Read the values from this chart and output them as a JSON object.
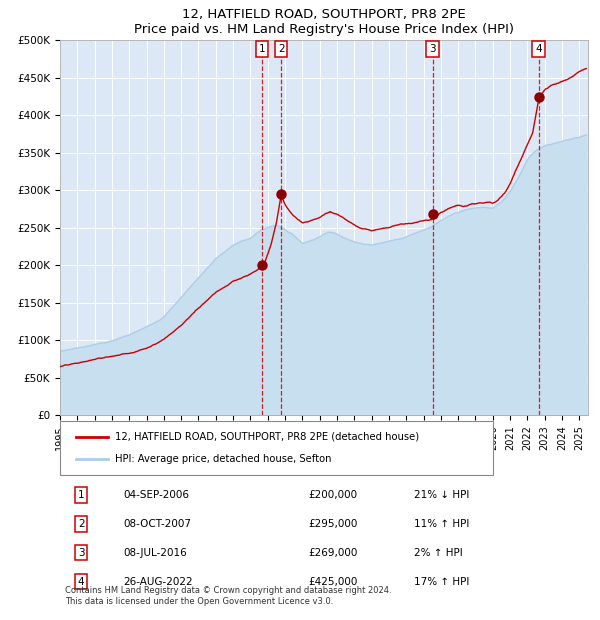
{
  "title": "12, HATFIELD ROAD, SOUTHPORT, PR8 2PE",
  "subtitle": "Price paid vs. HM Land Registry's House Price Index (HPI)",
  "ylabel_ticks": [
    "£0",
    "£50K",
    "£100K",
    "£150K",
    "£200K",
    "£250K",
    "£300K",
    "£350K",
    "£400K",
    "£450K",
    "£500K"
  ],
  "ytick_vals": [
    0,
    50000,
    100000,
    150000,
    200000,
    250000,
    300000,
    350000,
    400000,
    450000,
    500000
  ],
  "ylim": [
    0,
    500000
  ],
  "xlim_start": 1995.0,
  "xlim_end": 2025.5,
  "hpi_color": "#aecde8",
  "hpi_fill_color": "#c8dff0",
  "price_color": "#cc0000",
  "bg_color": "#dce8f5",
  "grid_color": "#ffffff",
  "transactions": [
    {
      "num": 1,
      "date_dec": 2006.67,
      "price": 200000,
      "label": "04-SEP-2006",
      "price_str": "£200,000",
      "hpi_rel": "21% ↓ HPI"
    },
    {
      "num": 2,
      "date_dec": 2007.77,
      "price": 295000,
      "label": "08-OCT-2007",
      "price_str": "£295,000",
      "hpi_rel": "11% ↑ HPI"
    },
    {
      "num": 3,
      "date_dec": 2016.52,
      "price": 269000,
      "label": "08-JUL-2016",
      "price_str": "£269,000",
      "hpi_rel": "2% ↑ HPI"
    },
    {
      "num": 4,
      "date_dec": 2022.65,
      "price": 425000,
      "label": "26-AUG-2022",
      "price_str": "£425,000",
      "hpi_rel": "17% ↑ HPI"
    }
  ],
  "legend_label_red": "12, HATFIELD ROAD, SOUTHPORT, PR8 2PE (detached house)",
  "legend_label_blue": "HPI: Average price, detached house, Sefton",
  "footer_line1": "Contains HM Land Registry data © Crown copyright and database right 2024.",
  "footer_line2": "This data is licensed under the Open Government Licence v3.0.",
  "xtick_years": [
    1995,
    1996,
    1997,
    1998,
    1999,
    2000,
    2001,
    2002,
    2003,
    2004,
    2005,
    2006,
    2007,
    2008,
    2009,
    2010,
    2011,
    2012,
    2013,
    2014,
    2015,
    2016,
    2017,
    2018,
    2019,
    2020,
    2021,
    2022,
    2023,
    2024,
    2025
  ]
}
